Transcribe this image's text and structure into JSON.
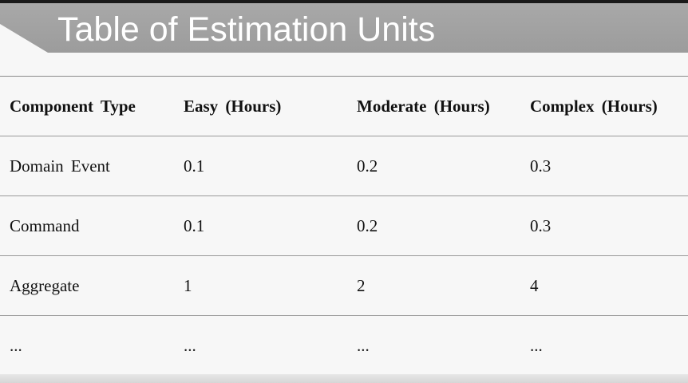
{
  "slide": {
    "title": "Table of Estimation Units"
  },
  "table": {
    "headers": [
      "Component Type",
      "Easy (Hours)",
      "Moderate (Hours)",
      "Complex (Hours)"
    ],
    "rows": [
      [
        "Domain Event",
        "0.1",
        "0.2",
        "0.3"
      ],
      [
        "Command",
        "0.1",
        "0.2",
        "0.3"
      ],
      [
        "Aggregate",
        "1",
        "2",
        "4"
      ],
      [
        "...",
        "...",
        "...",
        "..."
      ]
    ]
  },
  "colors": {
    "title_band": "#a3a3a3",
    "title_text": "#ffffff",
    "background": "#f7f7f7",
    "rule": "#9a9a9a"
  }
}
